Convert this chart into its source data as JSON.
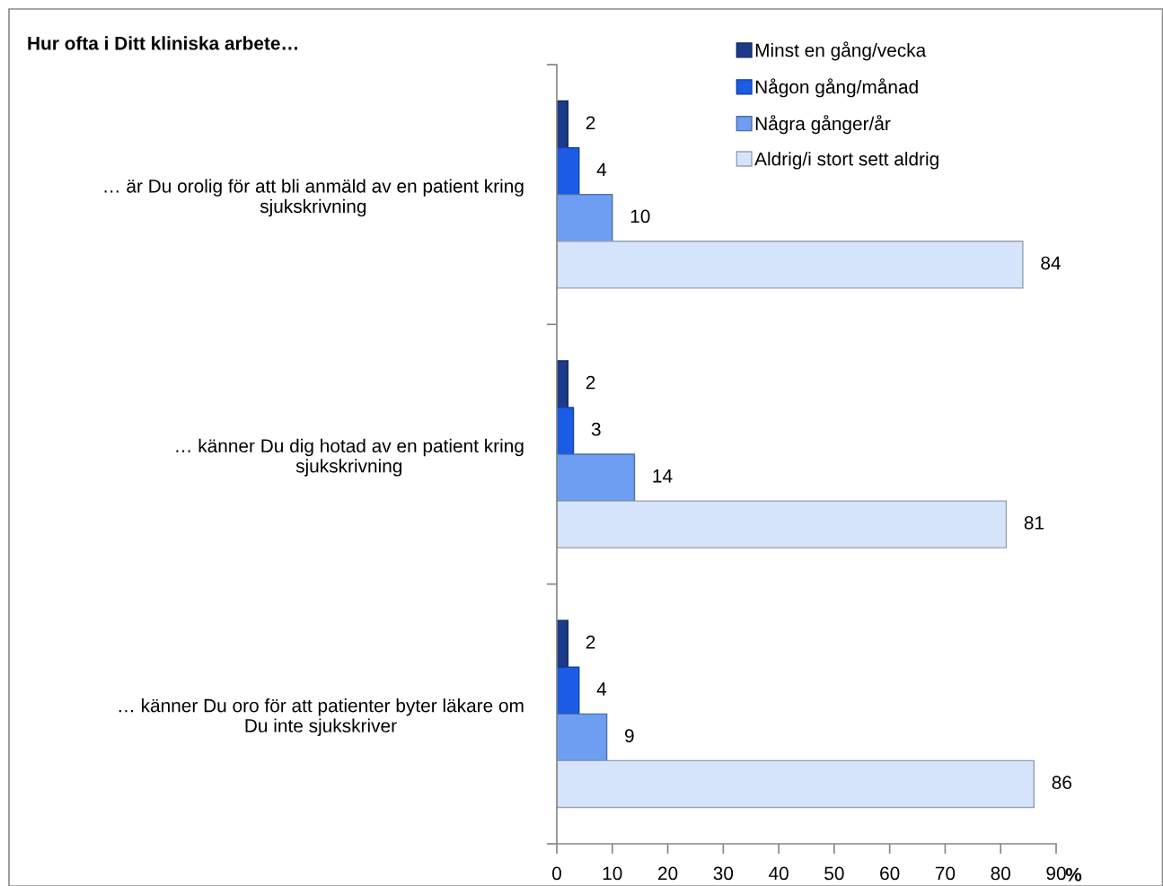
{
  "chart_data": {
    "type": "bar",
    "orientation": "horizontal",
    "title": "Hur ofta i Ditt kliniska arbete…",
    "xlabel": "%",
    "categories": [
      "… är Du orolig för att bli anmäld av en patient kring\nsjukskrivning",
      "… känner Du dig hotad av en patient kring\nsjukskrivning",
      "… känner Du oro för att patienter byter läkare om\nDu inte sjukskriver"
    ],
    "series": [
      {
        "name": "Minst en gång/vecka",
        "color": "#1b3a88",
        "values": [
          2,
          2,
          2
        ]
      },
      {
        "name": "Någon gång/månad",
        "color": "#1a5ce6",
        "values": [
          4,
          3,
          4
        ]
      },
      {
        "name": "Några gånger/år",
        "color": "#6e9ef2",
        "values": [
          10,
          14,
          9
        ]
      },
      {
        "name": "Aldrig/i stort sett aldrig",
        "color": "#d6e4fb",
        "values": [
          84,
          81,
          86
        ]
      }
    ],
    "xlim": [
      0,
      90
    ],
    "xticks": [
      0,
      10,
      20,
      30,
      40,
      50,
      60,
      70,
      80,
      90
    ],
    "data_labels": true,
    "legend": "top right",
    "grid": false
  }
}
